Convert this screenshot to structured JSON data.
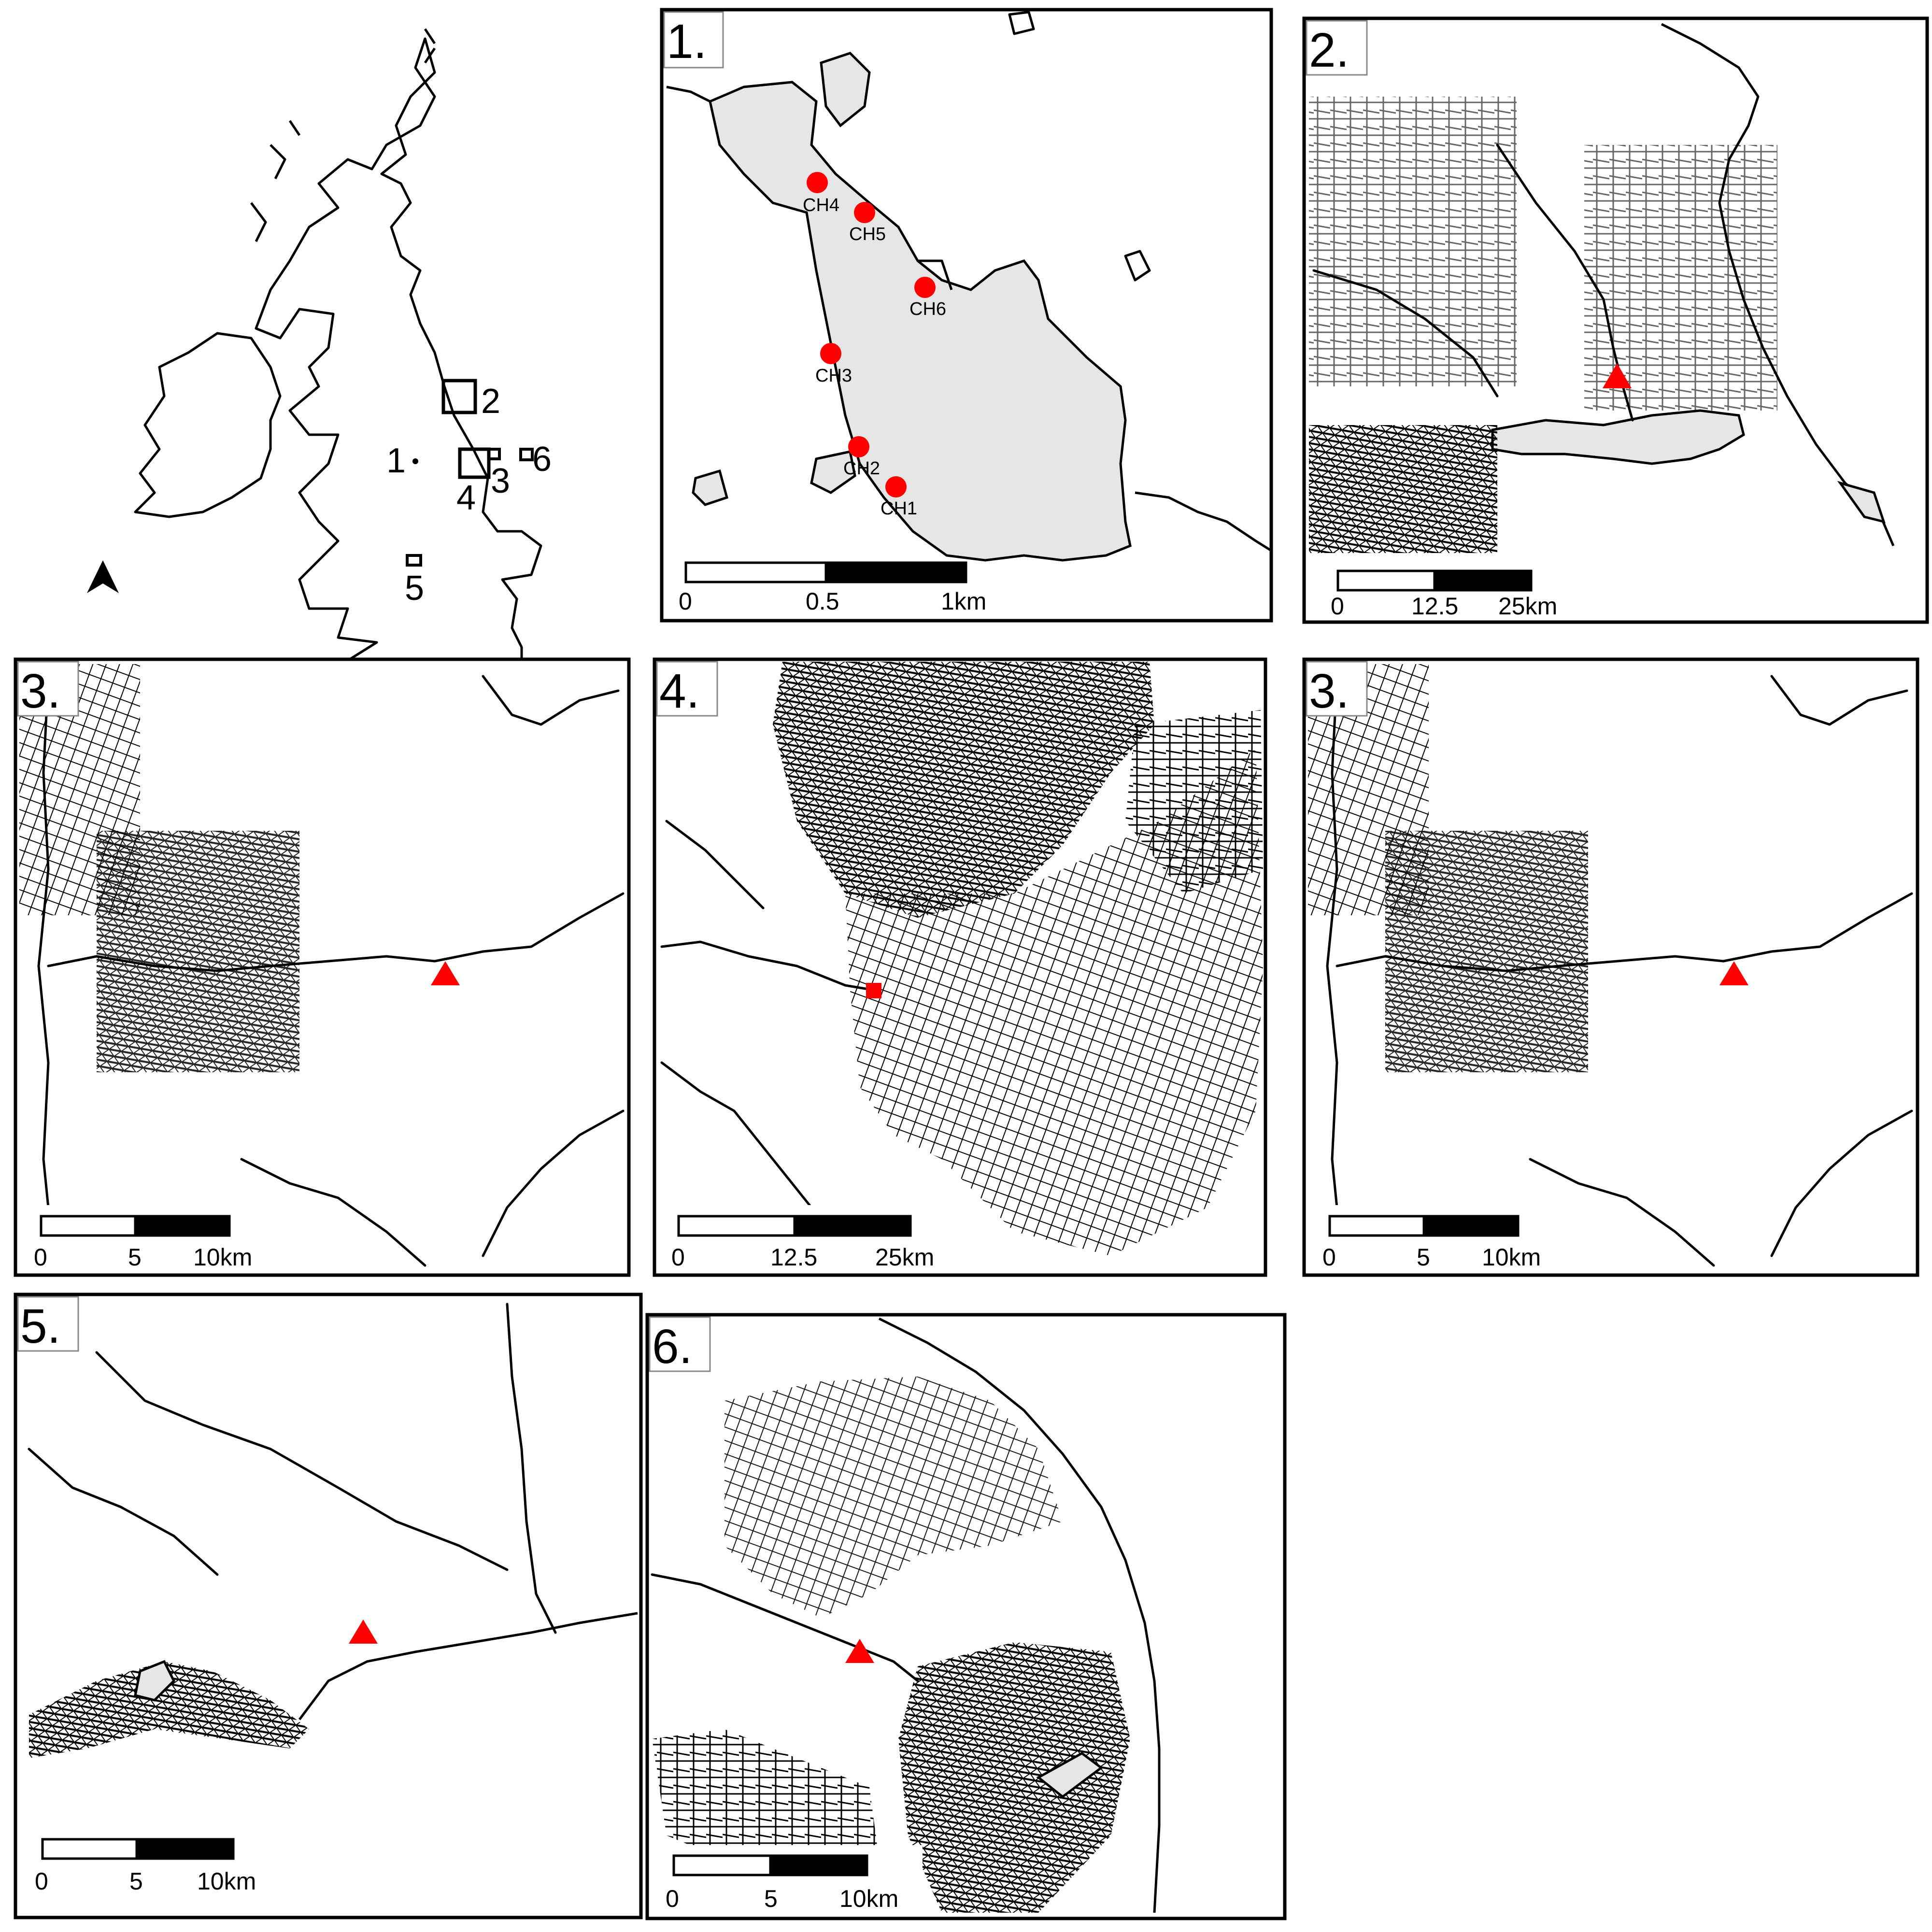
{
  "overview": {
    "markers": [
      "1",
      "2",
      "3",
      "4",
      "5",
      "6"
    ],
    "north_arrow": "north-arrow-icon"
  },
  "panels": [
    {
      "label": "1.",
      "scale": [
        "0",
        "0.5",
        "1km"
      ],
      "sites": [
        "CH4",
        "CH5",
        "CH6",
        "CH3",
        "CH2",
        "CH1"
      ]
    },
    {
      "label": "2.",
      "scale": [
        "0",
        "12.5",
        "25km"
      ]
    },
    {
      "label": "3.",
      "scale": [
        "0",
        "5",
        "10km"
      ]
    },
    {
      "label": "4.",
      "scale": [
        "0",
        "12.5",
        "25km"
      ]
    },
    {
      "label": "3.",
      "scale": [
        "0",
        "5",
        "10km"
      ]
    },
    {
      "label": "5.",
      "scale": [
        "0",
        "5",
        "10km"
      ]
    },
    {
      "label": "6.",
      "scale": [
        "0",
        "5",
        "10km"
      ]
    }
  ],
  "colors": {
    "site_marker": "#ff0000",
    "land_fill": "#e6e6e6",
    "network": "#000000"
  }
}
